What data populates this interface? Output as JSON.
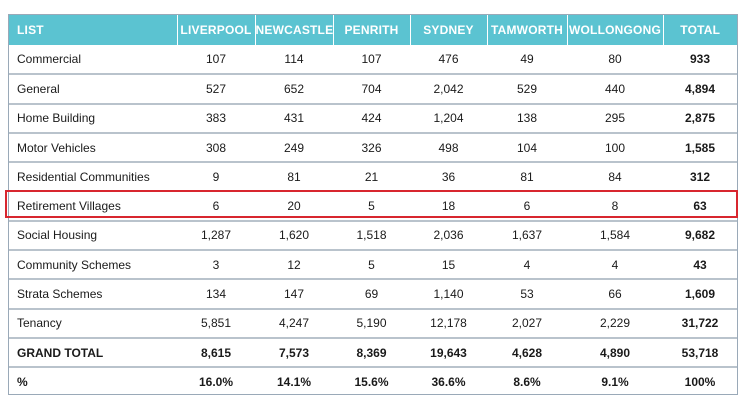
{
  "table": {
    "headers": [
      "LIST",
      "LIVERPOOL",
      "NEWCASTLE",
      "PENRITH",
      "SYDNEY",
      "TAMWORTH",
      "WOLLONGONG",
      "TOTAL"
    ],
    "rows": [
      [
        "Commercial",
        "107",
        "114",
        "107",
        "476",
        "49",
        "80",
        "933"
      ],
      [
        "General",
        "527",
        "652",
        "704",
        "2,042",
        "529",
        "440",
        "4,894"
      ],
      [
        "Home Building",
        "383",
        "431",
        "424",
        "1,204",
        "138",
        "295",
        "2,875"
      ],
      [
        "Motor Vehicles",
        "308",
        "249",
        "326",
        "498",
        "104",
        "100",
        "1,585"
      ],
      [
        "Residential Communities",
        "9",
        "81",
        "21",
        "36",
        "81",
        "84",
        "312"
      ],
      [
        "Retirement Villages",
        "6",
        "20",
        "5",
        "18",
        "6",
        "8",
        "63"
      ],
      [
        "Social Housing",
        "1,287",
        "1,620",
        "1,518",
        "2,036",
        "1,637",
        "1,584",
        "9,682"
      ],
      [
        "Community Schemes",
        "3",
        "12",
        "5",
        "15",
        "4",
        "4",
        "43"
      ],
      [
        "Strata Schemes",
        "134",
        "147",
        "69",
        "1,140",
        "53",
        "66",
        "1,609"
      ],
      [
        "Tenancy",
        "5,851",
        "4,247",
        "5,190",
        "12,178",
        "2,027",
        "2,229",
        "31,722"
      ],
      [
        "GRAND TOTAL",
        "8,615",
        "7,573",
        "8,369",
        "19,643",
        "4,628",
        "4,890",
        "53,718"
      ],
      [
        "%",
        "16.0%",
        "14.1%",
        "15.6%",
        "36.6%",
        "8.6%",
        "9.1%",
        "100%"
      ]
    ],
    "highlighted_row": "Retirement Villages"
  },
  "colors": {
    "header_background": "#5bc3d1",
    "highlight_border": "#d8262f"
  }
}
